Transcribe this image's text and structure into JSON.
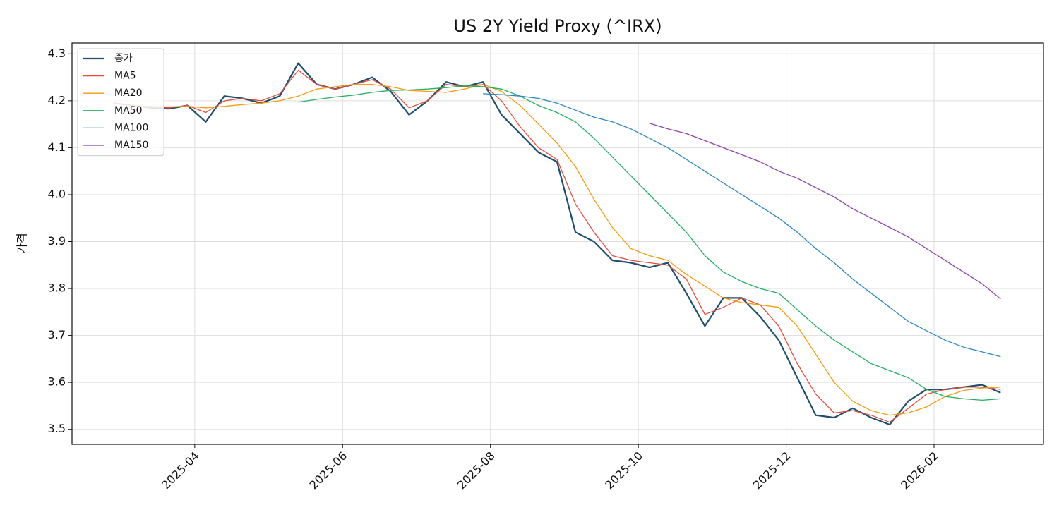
{
  "chart_data": {
    "type": "line",
    "title": "US 2Y Yield Proxy (^IRX)",
    "ylabel": "가격",
    "x": [
      1.9,
      2.15,
      2.4,
      2.65,
      2.9,
      3.15,
      3.4,
      3.65,
      3.9,
      4.15,
      4.4,
      4.65,
      4.9,
      5.15,
      5.4,
      5.65,
      5.9,
      6.15,
      6.4,
      6.65,
      6.9,
      7.15,
      7.4,
      7.65,
      7.9,
      8.15,
      8.4,
      8.65,
      8.9,
      9.15,
      9.4,
      9.65,
      9.9,
      10.15,
      10.4,
      10.65,
      10.9,
      11.15,
      11.4,
      11.65,
      11.9,
      12.15,
      12.4,
      12.65,
      12.9,
      13.15,
      13.4,
      13.65,
      13.9
    ],
    "series": [
      {
        "name": "종가",
        "color": "#1f4e6e",
        "linewidth": 2.2,
        "values": [
          4.195,
          4.19,
          4.185,
          4.183,
          4.19,
          4.155,
          4.21,
          4.205,
          4.195,
          4.21,
          4.28,
          4.235,
          4.225,
          4.235,
          4.25,
          4.22,
          4.17,
          4.2,
          4.24,
          4.23,
          4.24,
          4.17,
          4.13,
          4.09,
          4.07,
          3.92,
          3.9,
          3.86,
          3.855,
          3.845,
          3.855,
          3.79,
          3.72,
          3.78,
          3.78,
          3.74,
          3.69,
          3.61,
          3.53,
          3.525,
          3.545,
          3.525,
          3.51,
          3.56,
          3.585,
          3.585,
          3.59,
          3.595,
          3.578
        ]
      },
      {
        "name": "MA5",
        "color": "#e74c3c",
        "linewidth": 1.3,
        "values": [
          4.195,
          4.19,
          4.187,
          4.185,
          4.19,
          4.175,
          4.2,
          4.205,
          4.2,
          4.215,
          4.265,
          4.235,
          4.225,
          4.235,
          4.245,
          4.225,
          4.185,
          4.2,
          4.235,
          4.23,
          4.235,
          4.2,
          4.145,
          4.1,
          4.075,
          3.98,
          3.92,
          3.87,
          3.86,
          3.855,
          3.85,
          3.82,
          3.745,
          3.76,
          3.78,
          3.765,
          3.72,
          3.64,
          3.575,
          3.535,
          3.54,
          3.53,
          3.515,
          3.545,
          3.575,
          3.585,
          3.59,
          3.59,
          3.585
        ]
      },
      {
        "name": "MA20",
        "color": "#f39c12",
        "linewidth": 1.3,
        "values": [
          null,
          4.19,
          4.188,
          4.187,
          4.188,
          4.185,
          4.188,
          4.192,
          4.195,
          4.2,
          4.21,
          4.225,
          4.23,
          4.235,
          4.235,
          4.23,
          4.222,
          4.22,
          4.218,
          4.225,
          4.235,
          4.22,
          4.19,
          4.15,
          4.11,
          4.06,
          3.99,
          3.93,
          3.885,
          3.87,
          3.86,
          3.83,
          3.805,
          3.78,
          3.77,
          3.765,
          3.76,
          3.72,
          3.66,
          3.6,
          3.56,
          3.54,
          3.53,
          3.535,
          3.548,
          3.57,
          3.583,
          3.588,
          3.59
        ]
      },
      {
        "name": "MA50",
        "color": "#27ae60",
        "linewidth": 1.3,
        "values": [
          null,
          null,
          null,
          null,
          null,
          null,
          null,
          null,
          null,
          null,
          4.197,
          4.203,
          4.208,
          4.212,
          4.218,
          4.222,
          4.223,
          4.225,
          4.228,
          4.232,
          4.23,
          4.225,
          4.21,
          4.19,
          4.175,
          4.155,
          4.12,
          4.08,
          4.04,
          4.0,
          3.96,
          3.92,
          3.87,
          3.835,
          3.815,
          3.8,
          3.79,
          3.755,
          3.72,
          3.69,
          3.665,
          3.64,
          3.625,
          3.61,
          3.585,
          3.57,
          3.565,
          3.562,
          3.565
        ]
      },
      {
        "name": "MA100",
        "color": "#2e86c1",
        "linewidth": 1.3,
        "values": [
          null,
          null,
          null,
          null,
          null,
          null,
          null,
          null,
          null,
          null,
          null,
          null,
          null,
          null,
          null,
          null,
          null,
          null,
          null,
          null,
          4.215,
          4.213,
          4.21,
          4.205,
          4.195,
          4.18,
          4.165,
          4.155,
          4.14,
          4.12,
          4.1,
          4.075,
          4.05,
          4.025,
          4.0,
          3.975,
          3.95,
          3.92,
          3.885,
          3.855,
          3.82,
          3.79,
          3.76,
          3.73,
          3.71,
          3.69,
          3.675,
          3.665,
          3.655
        ]
      },
      {
        "name": "MA150",
        "color": "#8e44ad",
        "linewidth": 1.3,
        "values": [
          null,
          null,
          null,
          null,
          null,
          null,
          null,
          null,
          null,
          null,
          null,
          null,
          null,
          null,
          null,
          null,
          null,
          null,
          null,
          null,
          null,
          null,
          null,
          null,
          null,
          null,
          null,
          null,
          null,
          4.152,
          4.14,
          4.13,
          4.115,
          4.1,
          4.085,
          4.07,
          4.05,
          4.035,
          4.015,
          3.995,
          3.97,
          3.95,
          3.93,
          3.91,
          3.885,
          3.86,
          3.835,
          3.81,
          3.778
        ]
      }
    ],
    "xlim": [
      1.34,
      14.48
    ],
    "xticks": [
      {
        "value": 3,
        "label": "2025-04"
      },
      {
        "value": 5,
        "label": "2025-06"
      },
      {
        "value": 7,
        "label": "2025-08"
      },
      {
        "value": 9,
        "label": "2025-10"
      },
      {
        "value": 11,
        "label": "2025-12"
      },
      {
        "value": 13,
        "label": "2026-02"
      }
    ],
    "ylim": [
      3.468,
      4.323
    ],
    "yticks": [
      3.5,
      3.6,
      3.7,
      3.8,
      3.9,
      {
        "value": 4.0,
        "label": "4.0"
      },
      4.1,
      4.2,
      4.3
    ],
    "grid": true,
    "legend": "upper left"
  }
}
